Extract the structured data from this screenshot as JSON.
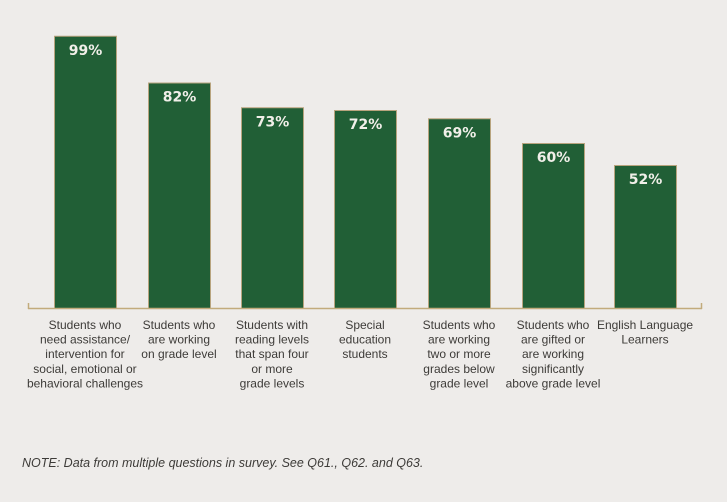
{
  "chart_data": {
    "type": "bar",
    "title": "",
    "xlabel": "",
    "ylabel": "",
    "ylim": [
      0,
      100
    ],
    "grid": false,
    "legend": "none",
    "value_suffix": "%",
    "categories": [
      [
        "Students who",
        "need assistance/",
        "intervention for",
        "social, emotional or",
        "behavioral challenges"
      ],
      [
        "Students who",
        "are working",
        "on grade level"
      ],
      [
        "Students with",
        "reading levels",
        "that span four",
        "or more",
        "grade levels"
      ],
      [
        "Special",
        "education",
        "students"
      ],
      [
        "Students who",
        "are working",
        "two or more",
        "grades below",
        "grade level"
      ],
      [
        "Students who",
        "are gifted or",
        "are working",
        "significantly",
        "above grade level"
      ],
      [
        "English Language",
        "Learners"
      ]
    ],
    "values": [
      99,
      82,
      73,
      72,
      69,
      60,
      52
    ],
    "colors": {
      "bar_fill": "#215f36",
      "bar_border": "#b8a47e",
      "axis": "#c2ab7c",
      "value_label": "#f1efe9",
      "category_label": "#3d3b38"
    }
  },
  "note": "NOTE: Data from multiple questions in survey. See Q61., Q62. and Q63."
}
